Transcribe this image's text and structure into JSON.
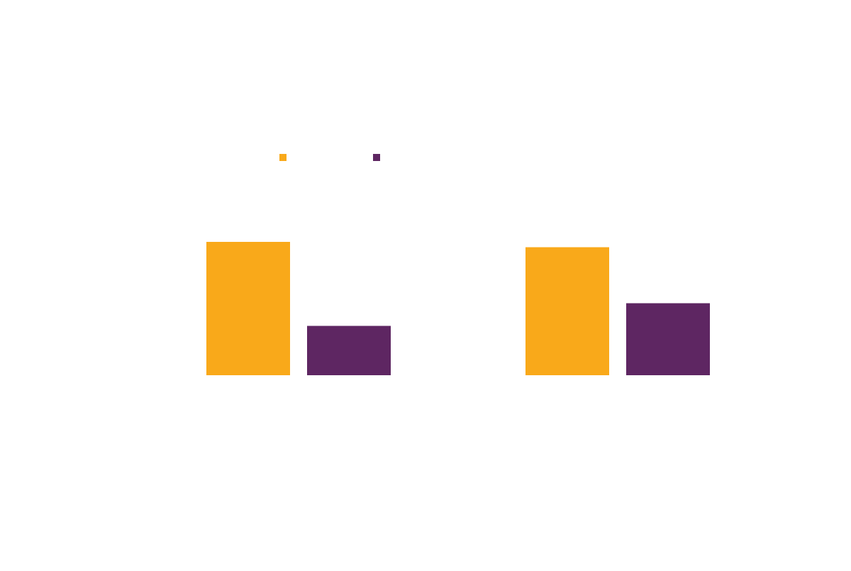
{
  "chart_data": {
    "type": "bar",
    "title": "",
    "xlabel": "",
    "ylabel": "",
    "categories": [
      "",
      ""
    ],
    "series": [
      {
        "color": "#F9A91A",
        "values": [
          100,
          96
        ]
      },
      {
        "color": "#5E2662",
        "values": [
          37,
          54
        ]
      }
    ],
    "ylim": [
      0,
      100
    ],
    "grid": false,
    "legend": {
      "position": "top-left",
      "marker": "square"
    }
  }
}
